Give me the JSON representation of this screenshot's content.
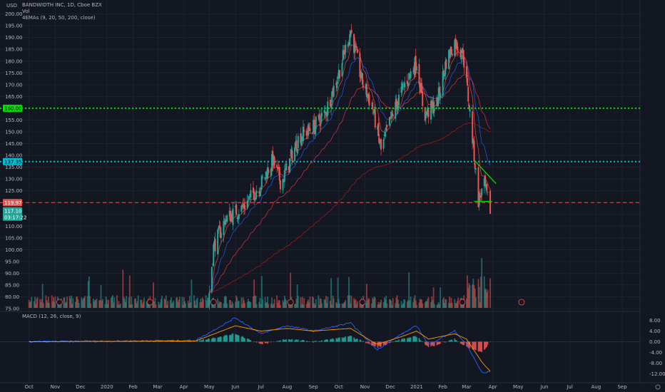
{
  "header": {
    "symbol_line": "BANDWIDTH INC, 1D, Cboe BZX",
    "vol_label": "Vol",
    "ema_label": "4EMAs (9, 20, 50, 200, close)",
    "macd_label": "MACD (12, 26, close, 9)",
    "currency_top": "USD",
    "settings_icon": "gear-icon"
  },
  "colors": {
    "background": "#131722",
    "grid": "#1e222d",
    "up": "#26a69a",
    "down": "#ef5350",
    "green_level": "#00e000",
    "cyan_level": "#00bcd4",
    "red_level": "#ef5350",
    "macd_line": "#2962ff",
    "signal_line": "#ff9800"
  },
  "price_axis": {
    "ticks": [
      "200.00",
      "195.00",
      "190.00",
      "185.00",
      "180.00",
      "175.00",
      "170.00",
      "165.00",
      "160.00",
      "155.00",
      "150.00",
      "145.00",
      "140.00",
      "135.00",
      "130.00",
      "125.00",
      "120.00",
      "115.00",
      "110.00",
      "105.00",
      "100.00",
      "95.00",
      "90.00",
      "85.00",
      "80.00",
      "75.00"
    ],
    "labels": {
      "green_level": "160.00",
      "cyan_level": "137.35",
      "red_level": "119.97",
      "last_price": "117.10",
      "countdown": "03:17:22"
    }
  },
  "macd_axis": {
    "ticks": [
      "8.00",
      "4.00",
      "0.00",
      "-4.00",
      "-8.00",
      "-12.00"
    ]
  },
  "time_axis": {
    "labels": [
      "Oct",
      "Nov",
      "Dec",
      "2020",
      "Feb",
      "Mar",
      "Apr",
      "May",
      "Jun",
      "Jul",
      "Aug",
      "Sep",
      "Oct",
      "Nov",
      "Dec",
      "2021",
      "Feb",
      "Mar",
      "Apr",
      "May",
      "Jun",
      "Jul",
      "Aug",
      "Sep"
    ]
  },
  "chart_data": {
    "type": "candlestick",
    "title": "BANDWIDTH INC, 1D, Cboe BZX",
    "ylim": [
      75,
      202
    ],
    "horizontal_levels": [
      {
        "value": 160.0,
        "style": "dotted",
        "color": "#00e000"
      },
      {
        "value": 137.35,
        "style": "dotted",
        "color": "#00bcd4"
      },
      {
        "value": 119.97,
        "style": "dashed",
        "color": "#ef5350"
      }
    ],
    "price_path": [
      [
        "2020-05-01",
        82
      ],
      [
        "2020-05-06",
        101
      ],
      [
        "2020-05-20",
        113
      ],
      [
        "2020-06-10",
        118
      ],
      [
        "2020-07-01",
        128
      ],
      [
        "2020-07-15",
        138
      ],
      [
        "2020-07-25",
        128
      ],
      [
        "2020-08-15",
        148
      ],
      [
        "2020-09-01",
        152
      ],
      [
        "2020-09-15",
        158
      ],
      [
        "2020-10-01",
        175
      ],
      [
        "2020-10-15",
        193
      ],
      [
        "2020-10-28",
        172
      ],
      [
        "2020-11-10",
        160
      ],
      [
        "2020-11-20",
        142
      ],
      [
        "2020-12-01",
        155
      ],
      [
        "2020-12-15",
        168
      ],
      [
        "2021-01-01",
        180
      ],
      [
        "2021-01-10",
        157
      ],
      [
        "2021-01-25",
        162
      ],
      [
        "2021-02-05",
        180
      ],
      [
        "2021-02-15",
        188
      ],
      [
        "2021-02-25",
        183
      ],
      [
        "2021-03-05",
        158
      ],
      [
        "2021-03-10",
        140
      ],
      [
        "2021-03-15",
        121
      ],
      [
        "2021-03-22",
        127
      ],
      [
        "2021-03-29",
        117
      ]
    ],
    "last_price": 117.1,
    "macd": {
      "macd_line": [
        [
          "2019-10-01",
          0
        ],
        [
          "2020-04-15",
          0.5
        ],
        [
          "2020-06-01",
          9
        ],
        [
          "2020-07-01",
          3
        ],
        [
          "2020-08-01",
          6
        ],
        [
          "2020-09-01",
          4
        ],
        [
          "2020-10-15",
          7
        ],
        [
          "2020-11-15",
          -3
        ],
        [
          "2020-12-15",
          3
        ],
        [
          "2021-01-01",
          6
        ],
        [
          "2021-01-15",
          -1
        ],
        [
          "2021-02-15",
          4
        ],
        [
          "2021-03-01",
          -1
        ],
        [
          "2021-03-20",
          -12
        ],
        [
          "2021-03-29",
          -11
        ]
      ],
      "signal_line": [
        [
          "2019-10-01",
          0
        ],
        [
          "2020-04-15",
          0.3
        ],
        [
          "2020-06-01",
          6
        ],
        [
          "2020-07-01",
          4
        ],
        [
          "2020-08-01",
          5
        ],
        [
          "2020-09-01",
          4
        ],
        [
          "2020-10-15",
          5
        ],
        [
          "2020-11-15",
          -1
        ],
        [
          "2020-12-15",
          2
        ],
        [
          "2021-01-01",
          4
        ],
        [
          "2021-01-15",
          1
        ],
        [
          "2021-02-15",
          3
        ],
        [
          "2021-03-01",
          1
        ],
        [
          "2021-03-20",
          -8
        ],
        [
          "2021-03-29",
          -11
        ]
      ]
    }
  }
}
